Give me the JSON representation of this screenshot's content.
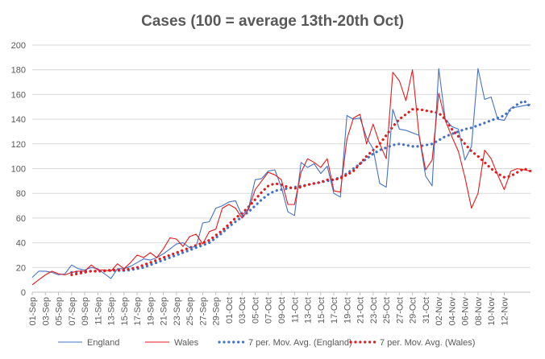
{
  "chart_data": {
    "type": "line",
    "title": "Cases (100 = average 13th-20th Oct)",
    "xlabel": "",
    "ylabel": "",
    "ylim": [
      0,
      200
    ],
    "yticks": [
      0,
      20,
      40,
      60,
      80,
      100,
      120,
      140,
      160,
      180,
      200
    ],
    "grid": true,
    "legend_position": "bottom",
    "x": [
      "01-Sep",
      "02-Sep",
      "03-Sep",
      "04-Sep",
      "05-Sep",
      "06-Sep",
      "07-Sep",
      "08-Sep",
      "09-Sep",
      "10-Sep",
      "11-Sep",
      "12-Sep",
      "13-Sep",
      "14-Sep",
      "15-Sep",
      "16-Sep",
      "17-Sep",
      "18-Sep",
      "19-Sep",
      "20-Sep",
      "21-Sep",
      "22-Sep",
      "23-Sep",
      "24-Sep",
      "25-Sep",
      "26-Sep",
      "27-Sep",
      "28-Sep",
      "29-Sep",
      "30-Sep",
      "01-Oct",
      "02-Oct",
      "03-Oct",
      "04-Oct",
      "05-Oct",
      "06-Oct",
      "07-Oct",
      "08-Oct",
      "09-Oct",
      "10-Oct",
      "11-Oct",
      "12-Oct",
      "13-Oct",
      "14-Oct",
      "15-Oct",
      "16-Oct",
      "17-Oct",
      "18-Oct",
      "19-Oct",
      "20-Oct",
      "21-Oct",
      "22-Oct",
      "23-Oct",
      "24-Oct",
      "25-Oct",
      "26-Oct",
      "27-Oct",
      "28-Oct",
      "29-Oct",
      "30-Oct",
      "31-Oct",
      "01-Nov",
      "02-Nov",
      "03-Nov",
      "04-Nov",
      "05-Nov",
      "06-Nov",
      "07-Nov",
      "08-Nov",
      "09-Nov",
      "10-Nov",
      "11-Nov",
      "12-Nov",
      "13-Nov",
      "14-Nov",
      "15-Nov",
      "16-Nov"
    ],
    "tick_labels": [
      "01-Sep",
      "03-Sep",
      "05-Sep",
      "07-Sep",
      "09-Sep",
      "11-Sep",
      "13-Sep",
      "15-Sep",
      "17-Sep",
      "19-Sep",
      "21-Sep",
      "23-Sep",
      "25-Sep",
      "27-Sep",
      "29-Sep",
      "01-Oct",
      "03-Oct",
      "05-Oct",
      "07-Oct",
      "09-Oct",
      "11-Oct",
      "13-Oct",
      "15-Oct",
      "17-Oct",
      "19-Oct",
      "21-Oct",
      "23-Oct",
      "25-Oct",
      "27-Oct",
      "29-Oct",
      "31-Oct",
      "02-Nov",
      "04-Nov",
      "06-Nov",
      "08-Nov",
      "10-Nov",
      "12-Nov"
    ],
    "series": [
      {
        "name": "England",
        "color": "#4472c4",
        "style": "solid",
        "values": [
          12,
          17,
          17,
          16,
          14,
          15,
          22,
          19,
          18,
          20,
          19,
          15,
          11,
          19,
          19,
          21,
          24,
          27,
          26,
          28,
          31,
          35,
          39,
          40,
          36,
          37,
          56,
          57,
          68,
          70,
          73,
          74,
          62,
          68,
          91,
          92,
          98,
          99,
          85,
          65,
          62,
          105,
          101,
          104,
          96,
          102,
          80,
          77,
          143,
          140,
          141,
          125,
          116,
          88,
          85,
          148,
          132,
          131,
          129,
          127,
          94,
          86,
          181,
          140,
          134,
          132,
          107,
          118,
          181,
          156,
          158,
          140,
          139,
          149,
          150,
          151,
          152
        ]
      },
      {
        "name": "Wales",
        "color": "#e41a1c",
        "style": "solid",
        "values": [
          6,
          10,
          14,
          17,
          15,
          14,
          16,
          17,
          17,
          22,
          18,
          18,
          17,
          23,
          19,
          24,
          30,
          28,
          32,
          28,
          35,
          44,
          43,
          37,
          45,
          47,
          39,
          49,
          51,
          68,
          71,
          68,
          60,
          67,
          83,
          90,
          97,
          95,
          91,
          71,
          71,
          97,
          108,
          105,
          101,
          108,
          82,
          81,
          124,
          141,
          144,
          120,
          136,
          120,
          108,
          178,
          171,
          155,
          180,
          127,
          99,
          107,
          161,
          139,
          126,
          114,
          93,
          68,
          80,
          115,
          108,
          95,
          83,
          98,
          100,
          99,
          98
        ]
      },
      {
        "name": "7 per. Mov. Avg. (England)",
        "color": "#4472c4",
        "style": "dotted",
        "values": [
          null,
          null,
          null,
          null,
          null,
          null,
          16,
          16.5,
          17,
          17,
          17,
          17.5,
          17.5,
          17.5,
          17.5,
          18,
          19,
          20,
          22,
          24,
          26,
          28,
          30,
          32,
          34,
          36,
          38,
          40,
          44,
          48,
          53,
          57,
          61,
          65,
          70,
          75,
          79,
          82,
          83,
          84,
          85,
          86,
          87,
          88,
          89,
          90,
          91,
          93,
          96,
          100,
          104,
          108,
          112,
          115,
          117,
          119,
          120,
          119,
          118,
          118,
          119,
          120,
          123,
          126,
          128,
          130,
          132,
          133,
          135,
          137,
          139,
          141,
          143,
          148,
          152,
          155,
          150
        ]
      },
      {
        "name": "7 per. Mov. Avg. (Wales)",
        "color": "#e41a1c",
        "style": "dotted",
        "values": [
          null,
          null,
          null,
          null,
          null,
          null,
          14,
          15,
          16,
          17,
          17,
          17,
          18,
          18,
          18,
          19,
          20,
          22,
          24,
          26,
          28,
          30,
          32,
          34,
          36,
          38,
          40,
          42,
          46,
          50,
          55,
          60,
          64,
          69,
          75,
          81,
          86,
          88,
          87,
          85,
          84,
          85,
          87,
          88,
          89,
          91,
          91,
          92,
          95,
          98,
          104,
          110,
          115,
          120,
          127,
          134,
          140,
          144,
          148,
          148,
          147,
          146,
          145,
          140,
          132,
          126,
          120,
          114,
          110,
          105,
          100,
          96,
          93,
          94,
          97,
          100,
          98
        ]
      }
    ]
  }
}
